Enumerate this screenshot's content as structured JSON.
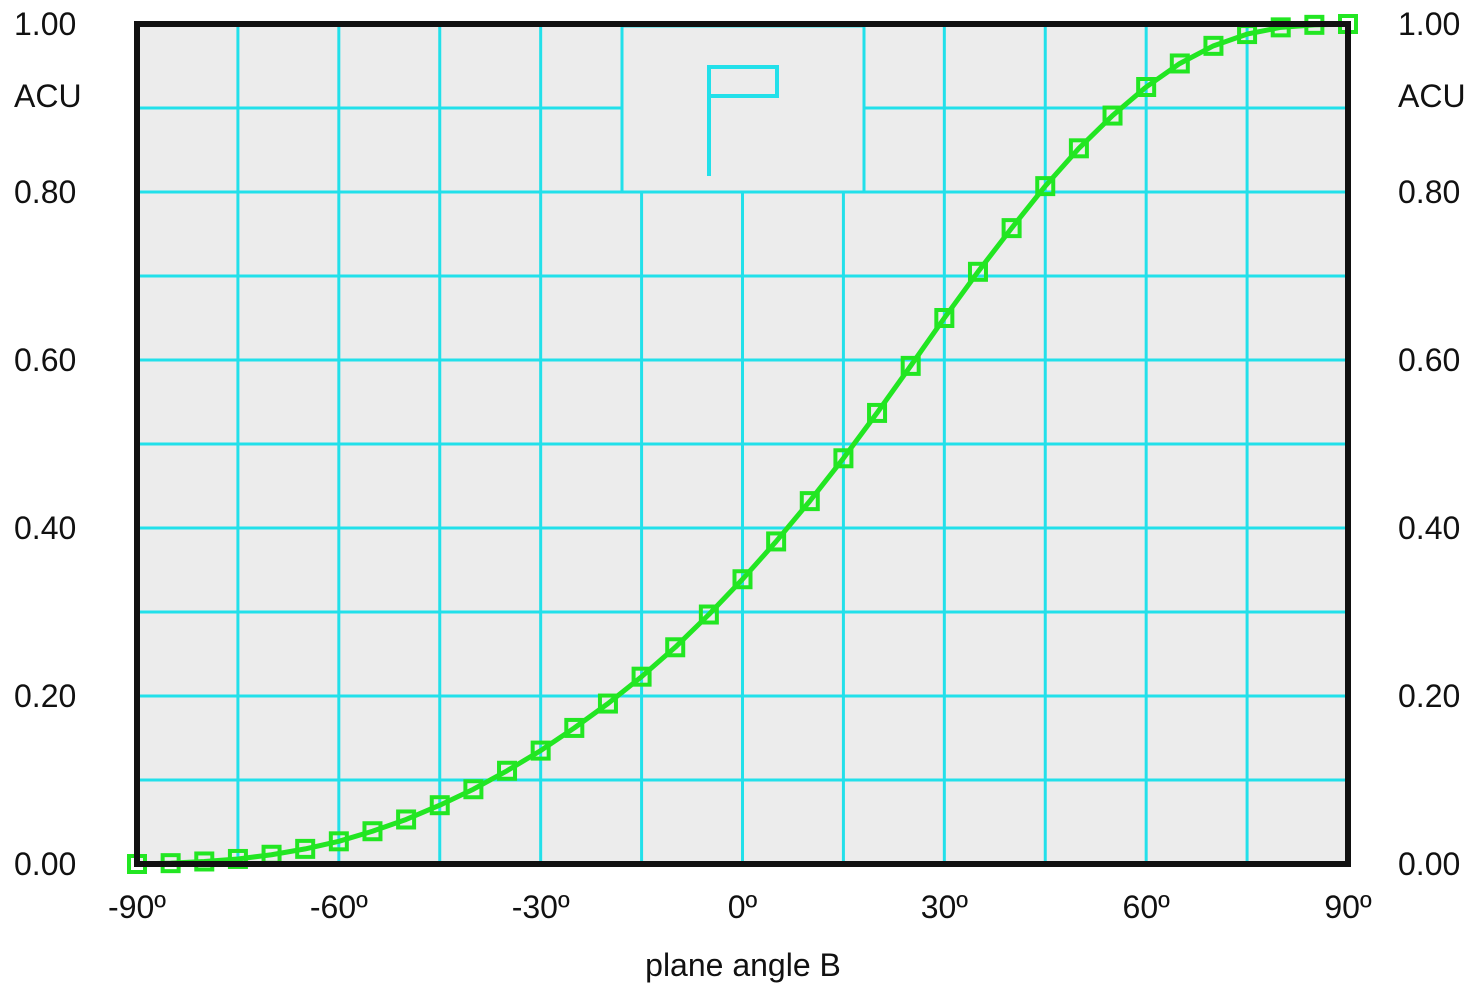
{
  "chart_data": {
    "type": "line",
    "title": "",
    "legend_label": "P",
    "xlabel": "plane angle B",
    "ylabel_left": "ACU",
    "ylabel_right": "ACU",
    "xlim": [
      -90,
      90
    ],
    "ylim": [
      0,
      1
    ],
    "x_ticks": [
      -90,
      -60,
      -30,
      0,
      30,
      60,
      90
    ],
    "x_tick_labels": [
      "-90º",
      "-60º",
      "-30º",
      "0º",
      "30º",
      "60º",
      "90º"
    ],
    "y_ticks": [
      0,
      0.2,
      0.4,
      0.6,
      0.8,
      1.0
    ],
    "y_tick_labels": [
      "0.00",
      "0.20",
      "0.40",
      "0.60",
      "0.80",
      "1.00"
    ],
    "x_grid_step": 15,
    "y_grid_step": 0.1,
    "grid": true,
    "colors": {
      "series": "#22e622",
      "grid": "#22e0ea",
      "plot_background": "#ececec",
      "frame": "#111111"
    },
    "series": [
      {
        "marker": "square",
        "x": [
          -90,
          -85,
          -80,
          -75,
          -70,
          -65,
          -60,
          -55,
          -50,
          -45,
          -40,
          -35,
          -30,
          -25,
          -20,
          -15,
          -10,
          -5,
          0,
          5,
          10,
          15,
          20,
          25,
          30,
          35,
          40,
          45,
          50,
          55,
          60,
          65,
          70,
          75,
          80,
          85,
          90
        ],
        "y": [
          0.0,
          0.001,
          0.003,
          0.006,
          0.011,
          0.018,
          0.027,
          0.039,
          0.053,
          0.07,
          0.089,
          0.111,
          0.135,
          0.162,
          0.191,
          0.223,
          0.258,
          0.297,
          0.339,
          0.384,
          0.432,
          0.483,
          0.537,
          0.593,
          0.65,
          0.705,
          0.757,
          0.807,
          0.852,
          0.891,
          0.925,
          0.953,
          0.974,
          0.988,
          0.996,
          0.999,
          1.0
        ]
      }
    ]
  }
}
